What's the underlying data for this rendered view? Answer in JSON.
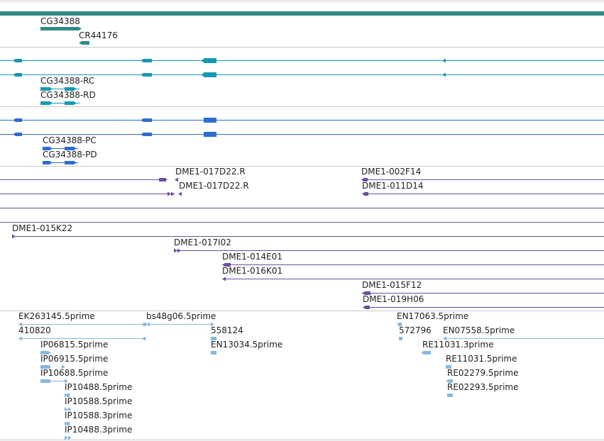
{
  "colors": {
    "gene": "#2f8a87",
    "transcript": "#1599b1",
    "cds": "#2e6dd0",
    "clone": "#6b4fa0",
    "est": "#87b8df",
    "separator": "#c8c8c8"
  },
  "gene_track": {
    "genes": [
      {
        "name": "CG34388"
      },
      {
        "name": "CR44176"
      }
    ]
  },
  "transcript_track": {
    "transcripts": [
      {
        "name": "CG34388-RC"
      },
      {
        "name": "CG34388-RD"
      }
    ]
  },
  "cds_track": {
    "proteins": [
      {
        "name": "CG34388-PC"
      },
      {
        "name": "CG34388-PD"
      }
    ]
  },
  "clone_track": {
    "clones": [
      {
        "name": "DME1-017D22.R"
      },
      {
        "name": "DME1-017D22.R"
      },
      {
        "name": "DME1-002F14"
      },
      {
        "name": "DME1-011D14"
      },
      {
        "name": "DME1-015K22"
      },
      {
        "name": "DME1-017I02"
      },
      {
        "name": "DME1-014E01"
      },
      {
        "name": "DME1-016K01"
      },
      {
        "name": "DME1-015F12"
      },
      {
        "name": "DME1-019H06"
      }
    ]
  },
  "est_track": {
    "ests": [
      {
        "name": "EK263145.5prime"
      },
      {
        "name": "410820"
      },
      {
        "name": "bs48g06.5prime"
      },
      {
        "name": "558124"
      },
      {
        "name": "EN13034.5prime"
      },
      {
        "name": "IP06815.5prime"
      },
      {
        "name": "IP06915.5prime"
      },
      {
        "name": "IP10688.5prime"
      },
      {
        "name": "IP10488.5prime"
      },
      {
        "name": "IP10588.5prime"
      },
      {
        "name": "IP10588.3prime"
      },
      {
        "name": "IP10488.3prime"
      },
      {
        "name": "EN17063.5prime"
      },
      {
        "name": "572796"
      },
      {
        "name": "EN07558.5prime"
      },
      {
        "name": "RE11031.3prime"
      },
      {
        "name": "RE11031.5prime"
      },
      {
        "name": "RE02279.5prime"
      },
      {
        "name": "RE02293.5prime"
      }
    ]
  }
}
